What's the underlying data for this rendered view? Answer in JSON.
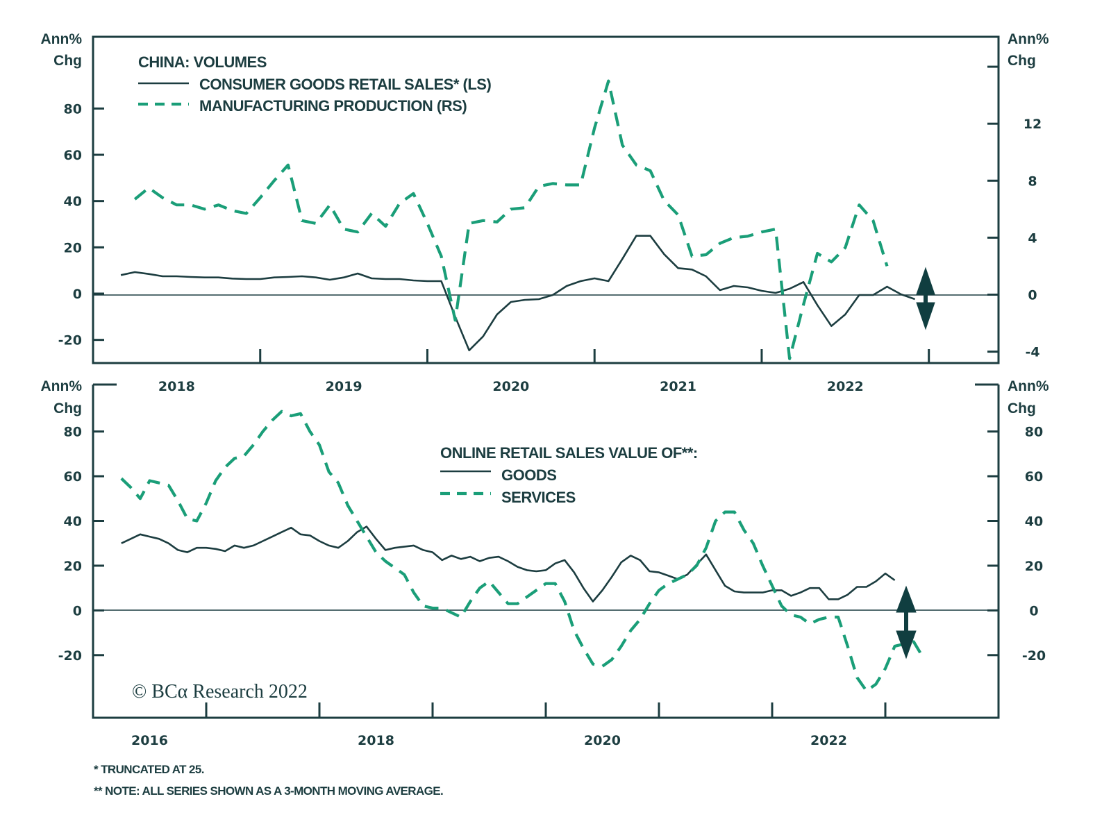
{
  "chart_data": [
    {
      "type": "line",
      "panel": "top",
      "title": "CHINA: VOLUMES",
      "left_axis_label": [
        "Ann%",
        "Chg"
      ],
      "right_axis_label": [
        "Ann%",
        "Chg"
      ],
      "left_ticks": [
        80,
        60,
        40,
        20,
        0,
        -20
      ],
      "left_tick_labels": [
        "80",
        "60",
        "40",
        "20",
        "0",
        "-20"
      ],
      "right_ticks": [
        16,
        12,
        8,
        4,
        0,
        -4
      ],
      "right_tick_labels": [
        "",
        "12",
        "8",
        "4",
        "0",
        "-4"
      ],
      "left_ylim": [
        -30,
        111
      ],
      "right_ylim": [
        -4.8,
        18.1
      ],
      "x_tick_years": [
        2019,
        2020,
        2021,
        2022,
        2023
      ],
      "x_labels": [
        "2018",
        "2019",
        "2020",
        "2021",
        "2022"
      ],
      "x_label_years": [
        2018,
        2019,
        2020,
        2021,
        2022
      ],
      "xlim": [
        "2018-01",
        "2023-06"
      ],
      "series": [
        {
          "name": "CONSUMER GOODS RETAIL SALES* (LS)",
          "style": "solid",
          "axis": "left",
          "start": "2018-03",
          "values": [
            8,
            9.3,
            8.5,
            7.5,
            7.5,
            7.2,
            7,
            7,
            6.5,
            6.3,
            6.3,
            7,
            7.2,
            7.5,
            7,
            6,
            7,
            8.7,
            6.6,
            6.3,
            6.3,
            5.7,
            5.4,
            5.4,
            -10,
            -24.5,
            -18.5,
            -9,
            -3.6,
            -2.7,
            -2.4,
            -0.6,
            3.3,
            5.4,
            6.6,
            5.4,
            15,
            25,
            25,
            17,
            11,
            10.4,
            7.5,
            1.5,
            3.3,
            2.7,
            1.2,
            0.3,
            2.1,
            5,
            -5,
            -14,
            -9,
            -0.6,
            -0.6,
            3,
            -0.3,
            -2.4
          ]
        },
        {
          "name": "MANUFACTURING PRODUCTION (RS)",
          "style": "dashed",
          "axis": "right",
          "start": "2018-04",
          "values": [
            6.7,
            7.5,
            6.8,
            6.3,
            6.3,
            6,
            6.3,
            5.9,
            5.7,
            6.8,
            8,
            9.1,
            5.2,
            5,
            6.3,
            4.6,
            4.4,
            5.7,
            4.8,
            6.4,
            7.1,
            5,
            2.7,
            -1.8,
            5,
            5.2,
            5.1,
            6,
            6.1,
            7.6,
            7.8,
            7.7,
            7.7,
            11.7,
            15,
            10.5,
            9.1,
            8.7,
            6.6,
            5.6,
            2.7,
            2.8,
            3.6,
            4,
            4.1,
            4.4,
            4.6,
            -4.5,
            -0.7,
            2.9,
            2.3,
            3.3,
            6.3,
            5.2,
            2
          ]
        }
      ],
      "annotation": "double-headed arrow near zero at latest data"
    },
    {
      "type": "line",
      "panel": "bottom",
      "title": "ONLINE RETAIL SALES VALUE OF**:",
      "left_axis_label": [
        "Ann%",
        "Chg"
      ],
      "right_axis_label": [
        "Ann%",
        "Chg"
      ],
      "left_ticks": [
        80,
        60,
        40,
        20,
        0,
        -20
      ],
      "left_tick_labels": [
        "80",
        "60",
        "40",
        "20",
        "0",
        "-20"
      ],
      "right_ticks": [
        80,
        60,
        40,
        20,
        0,
        -20
      ],
      "right_tick_labels": [
        "80",
        "60",
        "40",
        "20",
        "0",
        "-20"
      ],
      "ylim": [
        -48,
        101
      ],
      "x_tick_years": [
        2017,
        2018,
        2019,
        2020,
        2021,
        2022,
        2023
      ],
      "x_labels": [
        "2016",
        "2018",
        "2020",
        "2022"
      ],
      "x_label_years": [
        2016,
        2018,
        2020,
        2022
      ],
      "xlim": [
        "2016-01",
        "2024-01"
      ],
      "series": [
        {
          "name": "GOODS",
          "style": "solid",
          "start": "2016-04",
          "values": [
            30,
            32,
            34,
            33,
            32,
            30,
            27,
            26,
            28,
            28,
            27.5,
            26.5,
            29,
            28,
            29,
            31,
            33,
            35,
            37,
            34,
            33.5,
            31,
            29,
            28,
            31,
            35,
            37.5,
            32,
            27,
            28,
            28.5,
            29,
            27,
            26,
            22.5,
            24.5,
            23,
            24,
            22,
            23.5,
            24,
            22,
            19.5,
            18,
            17.5,
            18,
            21,
            22.5,
            17,
            10,
            4,
            9,
            15,
            21.5,
            24.5,
            22.5,
            17.5,
            17,
            15.5,
            14,
            16,
            20.5,
            25,
            18,
            11,
            8.5,
            8,
            8,
            8,
            9,
            9,
            6.5,
            8,
            10,
            10,
            5,
            5,
            7,
            10.5,
            10.5,
            13,
            16.5,
            13.5
          ]
        },
        {
          "name": "SERVICES",
          "style": "dashed",
          "start": "2016-04",
          "values": [
            59,
            55,
            50,
            58,
            57,
            56,
            49,
            41,
            40,
            48,
            58,
            64,
            68,
            69,
            74,
            80,
            85,
            89,
            87,
            88,
            80,
            74,
            62,
            57,
            47,
            40,
            33,
            26,
            22,
            19,
            16,
            8,
            2,
            1,
            1,
            -1,
            -3,
            4,
            10,
            13,
            8,
            3,
            3,
            6,
            9,
            12,
            12,
            4,
            -9,
            -17,
            -24,
            -25,
            -22,
            -16,
            -9,
            -4,
            3,
            9,
            12,
            14,
            16,
            20,
            28,
            40,
            44,
            44,
            36,
            30,
            20,
            11,
            2,
            -2,
            -3,
            -6,
            -4,
            -3,
            -3,
            -16,
            -30,
            -36,
            -33,
            -26,
            -16,
            -15,
            -14,
            -21
          ]
        }
      ],
      "annotation": "double-headed arrow near zero at latest data"
    }
  ],
  "top": {
    "axis_label_line1": "Ann%",
    "axis_label_line2": "Chg",
    "legend_title": "CHINA: VOLUMES",
    "legend_solid": "CONSUMER GOODS RETAIL SALES* (LS)",
    "legend_dashed": "MANUFACTURING PRODUCTION (RS)"
  },
  "bottom": {
    "axis_label_line1": "Ann%",
    "axis_label_line2": "Chg",
    "legend_title": "ONLINE RETAIL SALES VALUE OF**:",
    "legend_solid": "GOODS",
    "legend_dashed": "SERVICES"
  },
  "copyright": "© BCα Research 2022",
  "footnotes": [
    "*  TRUNCATED AT 25.",
    "** NOTE: ALL SERIES SHOWN AS A 3-MONTH MOVING AVERAGE."
  ],
  "colors": {
    "dark": "#1c3d40",
    "green": "#1a9e78",
    "arrow": "#103e40"
  }
}
